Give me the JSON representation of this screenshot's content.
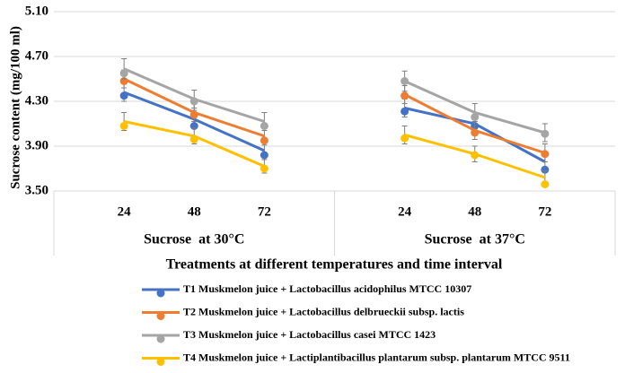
{
  "chart_data": {
    "type": "line",
    "y_label": "Sucrose content (mg/100 ml)",
    "x_label": "Treatments at different temperatures and time interval",
    "groups": [
      {
        "label": "Sucrose  at 30°C",
        "categories": [
          24,
          48,
          72
        ]
      },
      {
        "label": "Sucrose  at 37°C",
        "categories": [
          24,
          48,
          72
        ]
      }
    ],
    "ylim": [
      3.5,
      5.1
    ],
    "yticks": [
      {
        "value": 3.5,
        "label": "3.50"
      },
      {
        "value": 3.9,
        "label": "3.90"
      },
      {
        "value": 4.3,
        "label": "4.30"
      },
      {
        "value": 4.7,
        "label": "4.70"
      },
      {
        "value": 5.1,
        "label": "5.10"
      }
    ],
    "grid": true,
    "legend": "bottom",
    "series": [
      {
        "name": "T1 Muskmelon juice + Lactobacillus acidophilus MTCC 10307",
        "color": "#4472c4",
        "values": [
          4.38,
          4.14,
          3.86,
          4.24,
          4.1,
          3.76
        ],
        "errors": [
          0.08,
          0.08,
          0.08,
          0.08,
          0.08,
          0.08
        ],
        "markers": [
          4.35,
          4.08,
          3.82,
          4.21,
          4.08,
          3.69
        ]
      },
      {
        "name": "T2 Muskmelon juice + Lactobacillus delbrueckii subsp. lactis",
        "color": "#ed7d31",
        "values": [
          4.5,
          4.2,
          3.99,
          4.36,
          4.04,
          3.84
        ],
        "errors": [
          0.08,
          0.08,
          0.08,
          0.08,
          0.08,
          0.08
        ],
        "markers": [
          4.48,
          4.18,
          3.95,
          4.35,
          4.02,
          3.83
        ]
      },
      {
        "name": "T3 Muskmelon juice + Lactobacillus casei MTCC 1423",
        "color": "#a5a5a5",
        "values": [
          4.59,
          4.32,
          4.12,
          4.48,
          4.2,
          4.02
        ],
        "errors": [
          0.09,
          0.08,
          0.08,
          0.09,
          0.08,
          0.08
        ],
        "markers": [
          4.55,
          4.3,
          4.08,
          4.48,
          4.16,
          4.01
        ]
      },
      {
        "name": "T4 Muskmelon juice + Lactiplantibacillus plantarum subsp. plantarum MTCC 9511",
        "color": "#ffc000",
        "values": [
          4.12,
          3.99,
          3.72,
          4.0,
          3.83,
          3.62
        ],
        "errors": [
          0.08,
          0.07,
          0.06,
          0.08,
          0.07,
          0.06
        ],
        "markers": [
          4.08,
          3.96,
          3.7,
          3.97,
          3.82,
          3.56
        ]
      }
    ]
  }
}
